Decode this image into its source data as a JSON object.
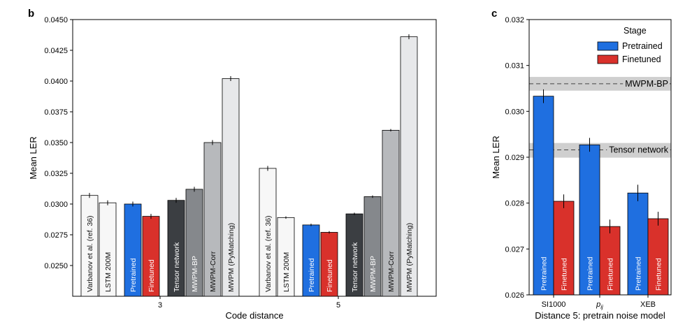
{
  "panels": {
    "b": "b",
    "c": "c"
  },
  "colors": {
    "pretrained": "#1f6fe0",
    "finetuned": "#d9312b",
    "varbanov": "#f7f7f7",
    "lstm": "#f7f7f7",
    "tensor": "#3b3e42",
    "mwpm_bp": "#85888c",
    "mwpm_corr": "#b7b9bc",
    "mwpm_py": "#e7e8ea",
    "band": "#cfcfcf"
  },
  "chart_data": [
    {
      "panel": "b",
      "type": "bar",
      "xlabel": "Code distance",
      "ylabel": "Mean LER",
      "ylim": [
        0.0225,
        0.045
      ],
      "yticks": [
        "0.0250",
        "0.0275",
        "0.0300",
        "0.0325",
        "0.0350",
        "0.0375",
        "0.0400",
        "0.0425",
        "0.0450"
      ],
      "grid": false,
      "groups": [
        {
          "category": "3",
          "bars": [
            {
              "label": "Varbanov et al. (ref. 36)",
              "value": 0.0307,
              "err": 0.0002,
              "color_key": "varbanov"
            },
            {
              "label": "LSTM 200M",
              "value": 0.0301,
              "err": 0.0002,
              "color_key": "lstm"
            },
            {
              "label": "Pretrained",
              "value": 0.03,
              "err": 0.0002,
              "color_key": "pretrained"
            },
            {
              "label": "Finetuned",
              "value": 0.029,
              "err": 0.0002,
              "color_key": "finetuned"
            },
            {
              "label": "Tensor network",
              "value": 0.0303,
              "err": 0.0002,
              "color_key": "tensor"
            },
            {
              "label": "MWPM-BP",
              "value": 0.0312,
              "err": 0.0002,
              "color_key": "mwpm_bp"
            },
            {
              "label": "MWPM-Corr",
              "value": 0.035,
              "err": 0.0002,
              "color_key": "mwpm_corr"
            },
            {
              "label": "MWPM (PyMatching)",
              "value": 0.0402,
              "err": 0.0002,
              "color_key": "mwpm_py"
            }
          ]
        },
        {
          "category": "5",
          "bars": [
            {
              "label": "Varbanov et al. (ref. 36)",
              "value": 0.0329,
              "err": 0.0002,
              "color_key": "varbanov"
            },
            {
              "label": "LSTM 200M",
              "value": 0.0289,
              "err": 0.0001,
              "color_key": "lstm"
            },
            {
              "label": "Pretrained",
              "value": 0.0283,
              "err": 0.0001,
              "color_key": "pretrained"
            },
            {
              "label": "Finetuned",
              "value": 0.0277,
              "err": 0.0001,
              "color_key": "finetuned"
            },
            {
              "label": "Tensor network",
              "value": 0.0292,
              "err": 0.0001,
              "color_key": "tensor"
            },
            {
              "label": "MWPM-BP",
              "value": 0.0306,
              "err": 0.0001,
              "color_key": "mwpm_bp"
            },
            {
              "label": "MWPM-Corr",
              "value": 0.036,
              "err": 0.0001,
              "color_key": "mwpm_corr"
            },
            {
              "label": "MWPM (PyMatching)",
              "value": 0.0436,
              "err": 0.0002,
              "color_key": "mwpm_py"
            }
          ]
        }
      ]
    },
    {
      "panel": "c",
      "type": "bar",
      "xlabel": "Distance 5: pretrain noise model",
      "ylabel": "Mean LER",
      "ylim": [
        0.026,
        0.032
      ],
      "yticks": [
        "0.026",
        "0.027",
        "0.028",
        "0.029",
        "0.030",
        "0.031",
        "0.032"
      ],
      "grid": false,
      "categories": [
        "SI1000",
        "p",
        "XEB"
      ],
      "category_subscript": [
        "",
        "ij",
        ""
      ],
      "series": [
        {
          "name": "Pretrained",
          "values": [
            0.03033,
            0.02927,
            0.02822
          ],
          "err": [
            0.00015,
            0.00015,
            0.00018
          ],
          "color_key": "pretrained"
        },
        {
          "name": "Finetuned",
          "values": [
            0.02804,
            0.02749,
            0.02766
          ],
          "err": [
            0.00015,
            0.00015,
            0.00015
          ],
          "color_key": "finetuned"
        }
      ],
      "bar_labels": [
        "Pretrained",
        "Finetuned"
      ],
      "legend": {
        "title": "Stage",
        "position": "top-right"
      },
      "reference_lines": [
        {
          "label": "MWPM-BP",
          "value": 0.0306,
          "band": [
            0.03045,
            0.03075
          ]
        },
        {
          "label": "Tensor network",
          "value": 0.02916,
          "band": [
            0.02899,
            0.02931
          ]
        }
      ]
    }
  ]
}
